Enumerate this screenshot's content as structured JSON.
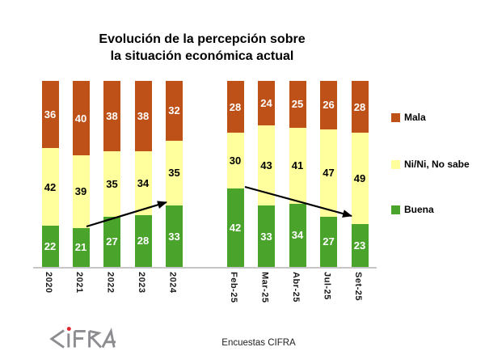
{
  "title": {
    "line1": "Evolución de la percepción sobre",
    "line2": "la situación económica actual"
  },
  "footer": {
    "text": "Encuestas CIFRA"
  },
  "logo": {
    "text": "CIFRA",
    "gray": "#8c8c91",
    "red": "#e0262c"
  },
  "chart_data": {
    "type": "bar",
    "stacked": true,
    "title": "Evolución de la percepción sobre la situación económica actual",
    "ylim": [
      0,
      100
    ],
    "grid": false,
    "legend_position": "right",
    "legend": [
      {
        "label": "Mala",
        "color": "#be5117"
      },
      {
        "label": "Ni/Ni, No sabe",
        "color": "#ffff9e"
      },
      {
        "label": "Buena",
        "color": "#4aa32b"
      }
    ],
    "series_colors": {
      "Buena": "#4aa32b",
      "Ni/Ni, No sabe": "#ffff9e",
      "Mala": "#be5117"
    },
    "series_label_text_colors": {
      "Buena": "#ffffff",
      "Ni/Ni, No sabe": "#000000",
      "Mala": "#ffffff"
    },
    "groups": [
      {
        "categories": [
          "2020",
          "2021",
          "2022",
          "2023",
          "2024"
        ],
        "series": [
          {
            "name": "Buena",
            "values": [
              22,
              21,
              27,
              28,
              33
            ]
          },
          {
            "name": "Ni/Ni, No sabe",
            "values": [
              42,
              39,
              35,
              34,
              35
            ]
          },
          {
            "name": "Mala",
            "values": [
              36,
              40,
              38,
              38,
              32
            ]
          }
        ]
      },
      {
        "categories": [
          "Feb-25",
          "Mar-25",
          "Abr-25",
          "Jul-25",
          "Set-25"
        ],
        "series": [
          {
            "name": "Buena",
            "values": [
              42,
              33,
              34,
              27,
              23
            ]
          },
          {
            "name": "Ni/Ni, No sabe",
            "values": [
              30,
              43,
              41,
              47,
              49
            ]
          },
          {
            "name": "Mala",
            "values": [
              28,
              24,
              25,
              26,
              28
            ]
          }
        ]
      }
    ],
    "annotations": [
      {
        "type": "trend-arrow",
        "direction": "up",
        "span": [
          "2021",
          "2024"
        ]
      },
      {
        "type": "trend-arrow",
        "direction": "down",
        "span": [
          "Feb-25",
          "Set-25"
        ]
      }
    ]
  }
}
